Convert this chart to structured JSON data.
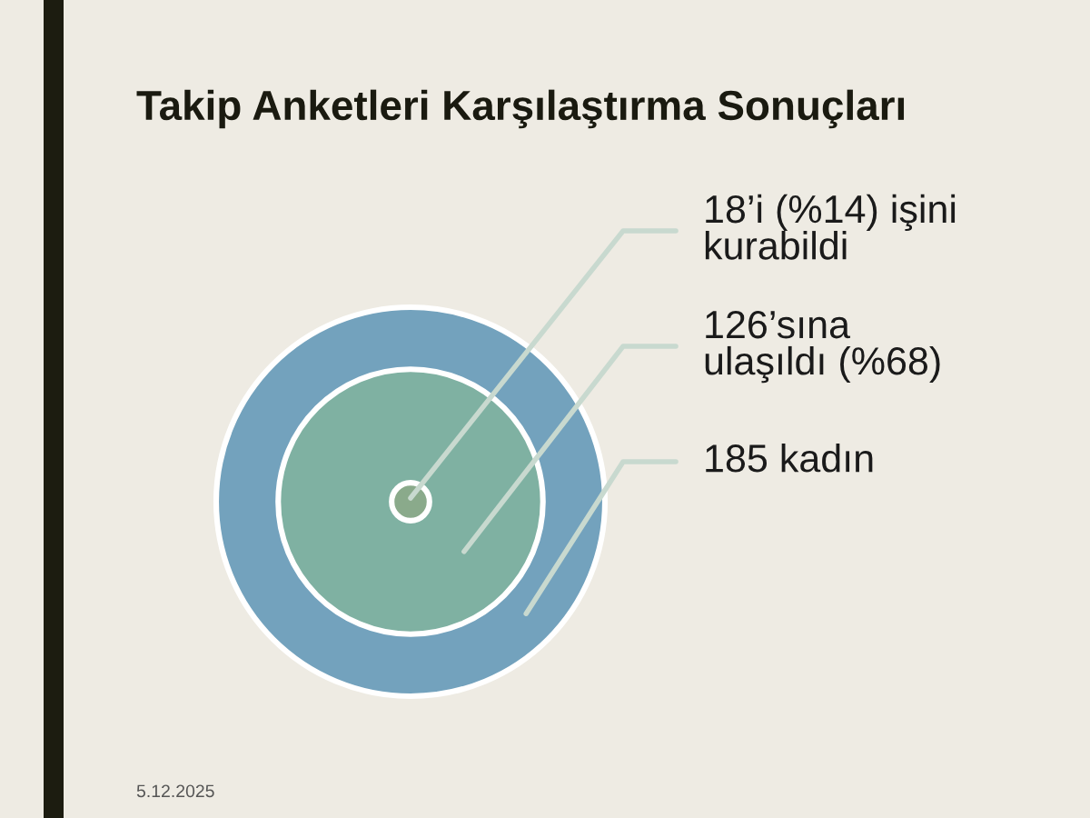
{
  "chart_data": {
    "type": "other",
    "title": "Takip Anketleri Karşılaştırma Sonuçları",
    "values": [
      18,
      126,
      185
    ],
    "value_labels": [
      "18’i (%14) işini\nkurabildi",
      "126’sına\nulaşıldı (%68)",
      "185 kadın"
    ],
    "colors": [
      "#8aaa8b",
      "#7fb1a2",
      "#73a2bd"
    ],
    "annotations": [
      "5.12.2025"
    ]
  }
}
